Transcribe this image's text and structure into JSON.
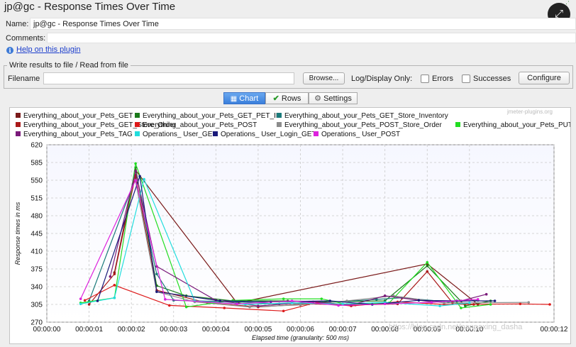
{
  "window": {
    "title": "jp@gc - Response Times Over Time"
  },
  "form": {
    "name_label": "Name:",
    "name_value": "jp@gc - Response Times Over Time",
    "comments_label": "Comments:",
    "help_link": "Help on this plugin",
    "group_title": "Write results to file / Read from file",
    "filename_label": "Filename",
    "filename_value": "",
    "browse_label": "Browse...",
    "log_display_label": "Log/Display Only:",
    "errors_label": "Errors",
    "successes_label": "Successes",
    "configure_label": "Configure"
  },
  "tabs": [
    {
      "label": "Chart",
      "icon": "chart-icon",
      "active": true
    },
    {
      "label": "Rows",
      "icon": "checkmark-icon",
      "active": false
    },
    {
      "label": "Settings",
      "icon": "gear-icon",
      "active": false
    }
  ],
  "chart_watermark": "jmeter-plugins.org",
  "page_watermark": "https://blog.csdn.net/panpaxing_dasha",
  "chart_data": {
    "type": "line",
    "ylabel": "Response times in ms",
    "xlabel": "Elapsed time (granularity: 500 ms)",
    "ylim": [
      270,
      620
    ],
    "yticks": [
      270,
      305,
      340,
      375,
      410,
      445,
      480,
      515,
      550,
      585,
      620
    ],
    "xlim": [
      0,
      12
    ],
    "xticks": [
      "00:00:00",
      "00:00:01",
      "00:00:02",
      "00:00:03",
      "00:00:04",
      "00:00:05",
      "00:00:06",
      "00:00:07",
      "00:00:08",
      "00:00:09",
      "00:00:10",
      "00:00:12"
    ],
    "grid": true,
    "legend_position": "top",
    "series": [
      {
        "name": "Everything_about_your_Pets_GET",
        "color": "#7a1a1a",
        "points": [
          [
            1.6,
            368
          ],
          [
            2.1,
            570
          ],
          [
            4.5,
            308
          ],
          [
            9.0,
            385
          ],
          [
            10.2,
            305
          ]
        ]
      },
      {
        "name": "Everything_about_your_Pets_GET_PET_ID",
        "color": "#1a7a1a",
        "points": [
          [
            2.1,
            575
          ],
          [
            2.6,
            342
          ],
          [
            3.3,
            322
          ],
          [
            4.4,
            312
          ],
          [
            5.7,
            312
          ],
          [
            6.6,
            310
          ],
          [
            8.0,
            312
          ],
          [
            9.0,
            381
          ],
          [
            9.9,
            302
          ],
          [
            10.5,
            312
          ]
        ]
      },
      {
        "name": "Everything_about_your_Pets_GET_Store_Inventory",
        "color": "#1a7a7a",
        "points": [
          [
            1.0,
            312
          ],
          [
            2.1,
            555
          ],
          [
            2.6,
            365
          ],
          [
            3.0,
            313
          ],
          [
            4.5,
            310
          ],
          [
            5.5,
            306
          ],
          [
            6.5,
            308
          ],
          [
            7.8,
            315
          ],
          [
            8.4,
            318
          ],
          [
            9.5,
            310
          ],
          [
            10.2,
            313
          ]
        ]
      },
      {
        "name": "Everything_about_your_Pets_GET_Store_Order",
        "color": "#aa1a1a",
        "points": [
          [
            1.0,
            305
          ],
          [
            1.6,
            365
          ],
          [
            2.1,
            560
          ],
          [
            2.6,
            333
          ],
          [
            3.8,
            308
          ],
          [
            5.0,
            300
          ],
          [
            6.2,
            306
          ],
          [
            7.3,
            304
          ],
          [
            8.3,
            306
          ],
          [
            9.0,
            370
          ],
          [
            9.6,
            308
          ],
          [
            10.1,
            305
          ]
        ]
      },
      {
        "name": "Everything_about_your_Pets_POST",
        "color": "#dd1a1a",
        "points": [
          [
            0.9,
            313
          ],
          [
            1.6,
            343
          ],
          [
            2.9,
            303
          ],
          [
            4.2,
            298
          ],
          [
            5.6,
            292
          ],
          [
            6.4,
            309
          ],
          [
            7.2,
            302
          ],
          [
            8.3,
            310
          ],
          [
            9.4,
            305
          ],
          [
            11.2,
            306
          ],
          [
            11.9,
            305
          ]
        ]
      },
      {
        "name": "Everything_about_your_Pets_POST_Store_Order",
        "color": "#8c8c8c",
        "points": [
          [
            2.1,
            548
          ],
          [
            2.6,
            330
          ],
          [
            3.5,
            310
          ],
          [
            4.8,
            300
          ],
          [
            6.0,
            304
          ],
          [
            7.1,
            312
          ],
          [
            8.2,
            322
          ],
          [
            9.4,
            308
          ],
          [
            11.4,
            309
          ]
        ]
      },
      {
        "name": "Everything_about_your_Pets_PUT",
        "color": "#22dd22",
        "points": [
          [
            0.8,
            308
          ],
          [
            1.6,
            318
          ],
          [
            2.1,
            583
          ],
          [
            3.3,
            300
          ],
          [
            4.4,
            313
          ],
          [
            5.6,
            316
          ],
          [
            6.5,
            316
          ],
          [
            7.1,
            305
          ],
          [
            8.1,
            308
          ],
          [
            9.0,
            388
          ],
          [
            9.8,
            298
          ],
          [
            10.5,
            305
          ]
        ]
      },
      {
        "name": "Everything_about_your_Pets_TAG",
        "color": "#7a1a7a",
        "points": [
          [
            1.5,
            360
          ],
          [
            2.1,
            568
          ],
          [
            2.6,
            380
          ],
          [
            4.0,
            313
          ],
          [
            5.0,
            302
          ],
          [
            6.3,
            310
          ],
          [
            7.2,
            304
          ],
          [
            8.0,
            322
          ],
          [
            9.1,
            310
          ],
          [
            9.8,
            312
          ],
          [
            10.4,
            325
          ]
        ]
      },
      {
        "name": "Operations_ User_GET",
        "color": "#22dddd",
        "points": [
          [
            0.8,
            306
          ],
          [
            1.6,
            318
          ],
          [
            2.3,
            552
          ],
          [
            3.5,
            312
          ],
          [
            4.7,
            305
          ],
          [
            5.8,
            308
          ],
          [
            7.0,
            306
          ],
          [
            8.0,
            309
          ],
          [
            9.3,
            302
          ],
          [
            10.0,
            308
          ]
        ]
      },
      {
        "name": "Operations_ User_Login_GET",
        "color": "#1a1a7a",
        "points": [
          [
            1.2,
            312
          ],
          [
            2.2,
            558
          ],
          [
            2.6,
            330
          ],
          [
            4.1,
            312
          ],
          [
            5.3,
            310
          ],
          [
            6.7,
            312
          ],
          [
            7.7,
            305
          ],
          [
            8.8,
            313
          ],
          [
            9.7,
            312
          ],
          [
            10.6,
            312
          ]
        ]
      },
      {
        "name": "Operations_ User_POST",
        "color": "#dd22dd",
        "points": [
          [
            0.8,
            316
          ],
          [
            2.1,
            550
          ],
          [
            2.8,
            315
          ],
          [
            4.5,
            306
          ],
          [
            5.8,
            312
          ],
          [
            6.9,
            303
          ],
          [
            8.0,
            306
          ],
          [
            9.1,
            309
          ],
          [
            10.2,
            315
          ]
        ]
      }
    ]
  }
}
